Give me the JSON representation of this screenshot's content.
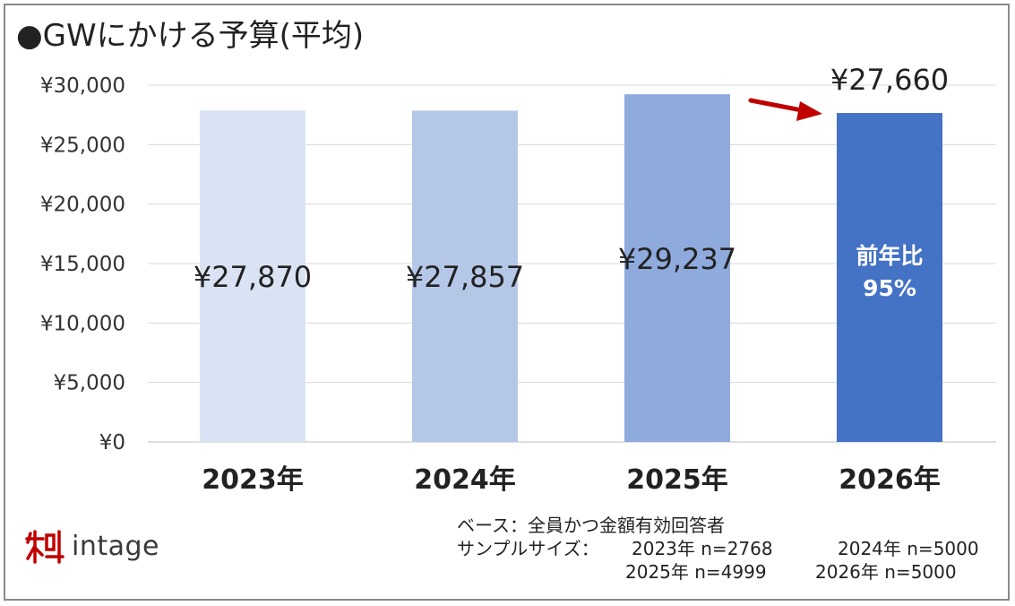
{
  "title": "●GWにかける予算(平均)",
  "chart_data": {
    "type": "bar",
    "categories": [
      "2023年",
      "2024年",
      "2025年",
      "2026年"
    ],
    "values": [
      27870,
      27857,
      29237,
      27660
    ],
    "value_labels": [
      "¥27,870",
      "¥27,857",
      "¥29,237",
      ""
    ],
    "top_label": "¥27,660",
    "yoy_label_line1": "前年比",
    "yoy_label_line2": "95%",
    "y_ticks": [
      "¥0",
      "¥5,000",
      "¥10,000",
      "¥15,000",
      "¥20,000",
      "¥25,000",
      "¥30,000"
    ],
    "ylim": [
      0,
      30000
    ],
    "grid": true,
    "colors": [
      "#dae3f3",
      "#b4c7e7",
      "#8faadc",
      "#4472c4"
    ],
    "arrow_color": "#c00000"
  },
  "notes": {
    "base_line": "ベース：全員かつ金額有効回答者",
    "sample_label": "サンプルサイズ：",
    "s2023": "2023年 n=2768",
    "s2024": "2024年 n=5000",
    "s2025": "2025年 n=4999",
    "s2026": "2026年 n=5000"
  },
  "logo": {
    "text": "intage",
    "icon": "intage-logo-icon",
    "color": "#c00000"
  }
}
